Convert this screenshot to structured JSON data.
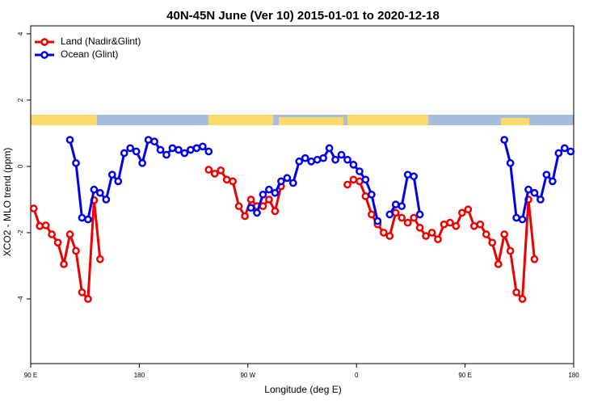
{
  "chart_data": {
    "type": "line",
    "title": "40N-45N June (Ver 10)   2015-01-01 to 2020-12-18",
    "x_label": "Longitude (deg E)",
    "y_label": "XCO2 - MLO trend (ppm)",
    "xlim": [
      90,
      540
    ],
    "ylim": [
      -5.95,
      4.24
    ],
    "xticks": [
      {
        "value": 90,
        "label": "90 E"
      },
      180,
      {
        "value": 270,
        "label": "90 W"
      },
      {
        "value": 360,
        "label": "0"
      },
      {
        "value": 450,
        "label": "90 E"
      },
      {
        "value": 540,
        "label": "180"
      }
    ],
    "yticks": [
      -4,
      -2,
      0,
      2,
      4
    ],
    "legend": "top-left",
    "series": [
      {
        "name": "Land (Nadir&Glint)",
        "color": "#ee0000",
        "x": [
          92.5,
          97.5,
          102.5,
          107.5,
          112.5,
          117.5,
          122.5,
          127.5,
          132.5,
          137.5,
          142.5,
          147.5,
          152.5,
          237.5,
          242.5,
          247.5,
          252.5,
          257.5,
          262.5,
          267.5,
          272.5,
          277.5,
          282.5,
          287.5,
          292.5,
          297.5,
          302.5,
          352.5,
          357.5,
          362.5,
          367.5,
          372.5,
          377.5,
          382.5,
          387.5,
          392.5,
          397.5,
          402.5,
          407.5,
          412.5,
          417.5,
          422.5,
          427.5,
          432.5,
          437.5,
          442.5,
          447.5,
          452.5,
          457.5,
          462.5,
          467.5,
          472.5,
          477.5,
          482.5,
          487.5,
          492.5,
          497.5,
          502.5,
          507.5
        ],
        "values": [
          -1.27,
          -1.8,
          -1.78,
          -2.05,
          -2.3,
          -2.95,
          -2.05,
          -2.55,
          -3.8,
          -4.0,
          -1.02,
          -2.8,
          null,
          -0.1,
          -0.22,
          -0.12,
          -0.4,
          -0.45,
          -1.2,
          -1.5,
          -1.0,
          -1.2,
          -1.2,
          -1.0,
          -1.35,
          -0.6,
          null,
          -0.55,
          -0.4,
          -0.45,
          -0.9,
          -1.45,
          -1.75,
          -2.0,
          -2.1,
          -1.4,
          -1.55,
          -1.7,
          -1.55,
          -1.85,
          -2.1,
          -2.0,
          -2.2,
          -1.75,
          -1.7,
          -1.8,
          -1.4,
          -1.3,
          -1.8,
          -1.75,
          -2.05,
          -2.3,
          -2.95,
          -2.05,
          -2.55,
          -3.8,
          -4.0,
          -1.0,
          -2.8
        ]
      },
      {
        "name": "Ocean (Glint)",
        "color": "#0000ee",
        "x": [
          122.5,
          127.5,
          132.5,
          137.5,
          142.5,
          147.5,
          152.5,
          157.5,
          162.5,
          167.5,
          172.5,
          177.5,
          182.5,
          187.5,
          192.5,
          197.5,
          202.5,
          207.5,
          212.5,
          217.5,
          222.5,
          227.5,
          232.5,
          237.5,
          242.5,
          272.5,
          277.5,
          282.5,
          287.5,
          292.5,
          297.5,
          302.5,
          307.5,
          312.5,
          317.5,
          322.5,
          327.5,
          332.5,
          337.5,
          342.5,
          347.5,
          352.5,
          357.5,
          362.5,
          367.5,
          372.5,
          377.5,
          382.5,
          387.5,
          392.5,
          397.5,
          402.5,
          407.5,
          412.5,
          417.5,
          482.5,
          487.5,
          492.5,
          497.5,
          502.5,
          507.5,
          512.5,
          517.5,
          522.5,
          527.5,
          532.5,
          537.5
        ],
        "values": [
          0.8,
          0.1,
          -1.55,
          -1.6,
          -0.7,
          -0.8,
          -1.0,
          -0.25,
          -0.45,
          0.4,
          0.55,
          0.45,
          0.1,
          0.8,
          0.75,
          0.5,
          0.35,
          0.55,
          0.5,
          0.4,
          0.5,
          0.55,
          0.6,
          0.45,
          null,
          -1.25,
          -1.4,
          -0.85,
          -0.7,
          -0.8,
          -0.45,
          -0.35,
          -0.5,
          0.15,
          0.25,
          0.15,
          0.2,
          0.25,
          0.55,
          0.2,
          0.35,
          0.2,
          0.05,
          -0.15,
          -0.4,
          -0.85,
          -1.65,
          null,
          -1.45,
          -1.15,
          -1.2,
          -0.25,
          -0.3,
          -1.45,
          null,
          0.8,
          0.1,
          -1.55,
          -1.6,
          -0.7,
          -0.8,
          -1.0,
          -0.25,
          -0.45,
          0.4,
          0.55,
          0.45
        ]
      }
    ]
  }
}
